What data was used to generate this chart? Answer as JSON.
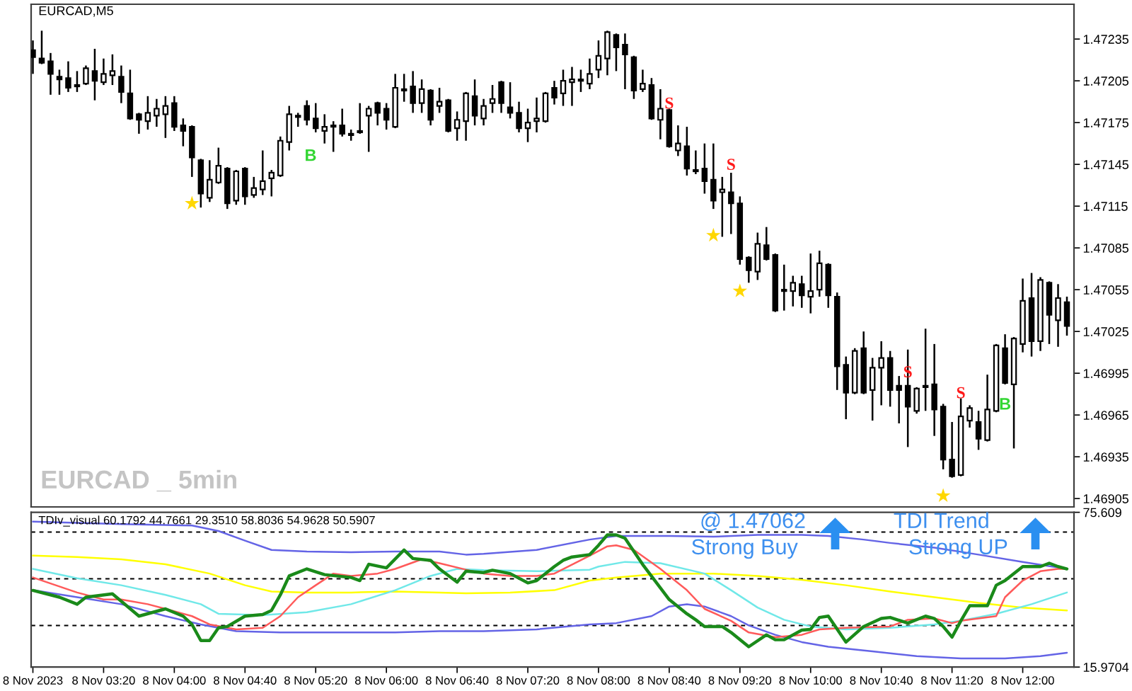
{
  "chart_data": [
    {
      "type": "candlestick",
      "title": "EURCAD,M5",
      "color": "#000000",
      "x": [
        "2023-11-08T02:40",
        "2023-11-08T02:45",
        "2023-11-08T02:50",
        "2023-11-08T02:55",
        "2023-11-08T03:00",
        "2023-11-08T03:05",
        "2023-11-08T03:10",
        "2023-11-08T03:15",
        "2023-11-08T03:20",
        "2023-11-08T03:25",
        "2023-11-08T03:30",
        "2023-11-08T03:35",
        "2023-11-08T03:40",
        "2023-11-08T03:45",
        "2023-11-08T03:50",
        "2023-11-08T03:55",
        "2023-11-08T04:00",
        "2023-11-08T04:05",
        "2023-11-08T04:10",
        "2023-11-08T04:15",
        "2023-11-08T04:20",
        "2023-11-08T04:25",
        "2023-11-08T04:30",
        "2023-11-08T04:35",
        "2023-11-08T04:40",
        "2023-11-08T04:45",
        "2023-11-08T04:50",
        "2023-11-08T04:55",
        "2023-11-08T05:00",
        "2023-11-08T05:05",
        "2023-11-08T05:10",
        "2023-11-08T05:15",
        "2023-11-08T05:20",
        "2023-11-08T05:25",
        "2023-11-08T05:30",
        "2023-11-08T05:35",
        "2023-11-08T05:40",
        "2023-11-08T05:45",
        "2023-11-08T05:50",
        "2023-11-08T05:55",
        "2023-11-08T06:00",
        "2023-11-08T06:05",
        "2023-11-08T06:10",
        "2023-11-08T06:15",
        "2023-11-08T06:20",
        "2023-11-08T06:25",
        "2023-11-08T06:30",
        "2023-11-08T06:35",
        "2023-11-08T06:40",
        "2023-11-08T06:45",
        "2023-11-08T06:50",
        "2023-11-08T06:55",
        "2023-11-08T07:00",
        "2023-11-08T07:05",
        "2023-11-08T07:10",
        "2023-11-08T07:15",
        "2023-11-08T07:20",
        "2023-11-08T07:25",
        "2023-11-08T07:30",
        "2023-11-08T07:35",
        "2023-11-08T07:40",
        "2023-11-08T07:45",
        "2023-11-08T07:50",
        "2023-11-08T07:55",
        "2023-11-08T08:00",
        "2023-11-08T08:05",
        "2023-11-08T08:10",
        "2023-11-08T08:15",
        "2023-11-08T08:20",
        "2023-11-08T08:25",
        "2023-11-08T08:30",
        "2023-11-08T08:35",
        "2023-11-08T08:40",
        "2023-11-08T08:45",
        "2023-11-08T08:50",
        "2023-11-08T08:55",
        "2023-11-08T09:00",
        "2023-11-08T09:05",
        "2023-11-08T09:10",
        "2023-11-08T09:15",
        "2023-11-08T09:20",
        "2023-11-08T09:25",
        "2023-11-08T09:30",
        "2023-11-08T09:35",
        "2023-11-08T09:40",
        "2023-11-08T09:45",
        "2023-11-08T09:50",
        "2023-11-08T09:55",
        "2023-11-08T10:00",
        "2023-11-08T10:05",
        "2023-11-08T10:10",
        "2023-11-08T10:15",
        "2023-11-08T10:20",
        "2023-11-08T10:25",
        "2023-11-08T10:30",
        "2023-11-08T10:35",
        "2023-11-08T10:40",
        "2023-11-08T10:45",
        "2023-11-08T10:50",
        "2023-11-08T10:55",
        "2023-11-08T11:00",
        "2023-11-08T11:05",
        "2023-11-08T11:10",
        "2023-11-08T11:15",
        "2023-11-08T11:20",
        "2023-11-08T11:25",
        "2023-11-08T11:30",
        "2023-11-08T11:35",
        "2023-11-08T11:40",
        "2023-11-08T11:45",
        "2023-11-08T11:50",
        "2023-11-08T11:55",
        "2023-11-08T12:00",
        "2023-11-08T12:05",
        "2023-11-08T12:10",
        "2023-11-08T12:15",
        "2023-11-08T12:20",
        "2023-11-08T12:25"
      ],
      "ohlc": [
        [
          1.47227,
          1.47234,
          1.4721,
          1.47222
        ],
        [
          1.47221,
          1.47241,
          1.47217,
          1.47218
        ],
        [
          1.47219,
          1.47225,
          1.47195,
          1.4721
        ],
        [
          1.47208,
          1.47213,
          1.47195,
          1.47206
        ],
        [
          1.47207,
          1.47219,
          1.47197,
          1.472
        ],
        [
          1.47202,
          1.47212,
          1.47197,
          1.47201
        ],
        [
          1.47203,
          1.47216,
          1.47202,
          1.47214
        ],
        [
          1.47212,
          1.47228,
          1.47191,
          1.47205
        ],
        [
          1.47204,
          1.47221,
          1.47202,
          1.4721
        ],
        [
          1.47209,
          1.47224,
          1.47202,
          1.47212
        ],
        [
          1.47208,
          1.47216,
          1.47189,
          1.47197
        ],
        [
          1.47196,
          1.47213,
          1.47177,
          1.47178
        ],
        [
          1.47181,
          1.47182,
          1.47167,
          1.47177
        ],
        [
          1.47176,
          1.47194,
          1.4717,
          1.47182
        ],
        [
          1.4718,
          1.47192,
          1.47172,
          1.47185
        ],
        [
          1.47181,
          1.47194,
          1.47164,
          1.47187
        ],
        [
          1.47189,
          1.47194,
          1.47169,
          1.47172
        ],
        [
          1.47173,
          1.47178,
          1.47158,
          1.47169
        ],
        [
          1.47172,
          1.47173,
          1.47136,
          1.4715
        ],
        [
          1.47148,
          1.47149,
          1.47114,
          1.47124
        ],
        [
          1.47121,
          1.47148,
          1.47118,
          1.47134
        ],
        [
          1.47132,
          1.47157,
          1.47131,
          1.47144
        ],
        [
          1.47142,
          1.47143,
          1.47113,
          1.47117
        ],
        [
          1.47119,
          1.47141,
          1.47116,
          1.4714
        ],
        [
          1.47142,
          1.47143,
          1.47116,
          1.47122
        ],
        [
          1.47123,
          1.47136,
          1.47121,
          1.47128
        ],
        [
          1.47127,
          1.47155,
          1.47123,
          1.47133
        ],
        [
          1.47135,
          1.47141,
          1.47122,
          1.47139
        ],
        [
          1.47137,
          1.47165,
          1.47136,
          1.47162
        ],
        [
          1.47161,
          1.47187,
          1.47155,
          1.47181
        ],
        [
          1.47179,
          1.47182,
          1.47172,
          1.4718
        ],
        [
          1.47187,
          1.47191,
          1.47173,
          1.47177
        ],
        [
          1.47178,
          1.47189,
          1.47168,
          1.47171
        ],
        [
          1.47169,
          1.47181,
          1.4716,
          1.47172
        ],
        [
          1.47173,
          1.47176,
          1.47154,
          1.47172
        ],
        [
          1.47173,
          1.47185,
          1.47165,
          1.47167
        ],
        [
          1.47166,
          1.4717,
          1.47162,
          1.47167
        ],
        [
          1.47168,
          1.47189,
          1.47167,
          1.47169
        ],
        [
          1.4718,
          1.47187,
          1.47154,
          1.47185
        ],
        [
          1.47189,
          1.4719,
          1.47173,
          1.47182
        ],
        [
          1.47185,
          1.47189,
          1.4717,
          1.47177
        ],
        [
          1.47172,
          1.4721,
          1.47171,
          1.472
        ],
        [
          1.47199,
          1.4721,
          1.4719,
          1.47198
        ],
        [
          1.47201,
          1.47212,
          1.47182,
          1.47189
        ],
        [
          1.47189,
          1.47206,
          1.47182,
          1.47199
        ],
        [
          1.47198,
          1.47199,
          1.47173,
          1.47177
        ],
        [
          1.47187,
          1.472,
          1.47182,
          1.4719
        ],
        [
          1.47191,
          1.47192,
          1.47168,
          1.47169
        ],
        [
          1.47171,
          1.47183,
          1.47162,
          1.47177
        ],
        [
          1.47176,
          1.47197,
          1.47162,
          1.47196
        ],
        [
          1.47194,
          1.47206,
          1.47173,
          1.4718
        ],
        [
          1.47178,
          1.47192,
          1.47173,
          1.47187
        ],
        [
          1.47189,
          1.47202,
          1.47182,
          1.47192
        ],
        [
          1.47204,
          1.47205,
          1.47182,
          1.47189
        ],
        [
          1.47186,
          1.47204,
          1.47178,
          1.47182
        ],
        [
          1.47182,
          1.4719,
          1.47168,
          1.47171
        ],
        [
          1.47171,
          1.47185,
          1.47161,
          1.47175
        ],
        [
          1.47176,
          1.47193,
          1.47168,
          1.47178
        ],
        [
          1.47176,
          1.47197,
          1.47175,
          1.47196
        ],
        [
          1.472,
          1.47205,
          1.47188,
          1.47193
        ],
        [
          1.47196,
          1.47213,
          1.47187,
          1.47205
        ],
        [
          1.47204,
          1.47215,
          1.47187,
          1.47206
        ],
        [
          1.47205,
          1.47213,
          1.47197,
          1.47206
        ],
        [
          1.47203,
          1.47221,
          1.47199,
          1.4721
        ],
        [
          1.47213,
          1.47234,
          1.47207,
          1.47223
        ],
        [
          1.47221,
          1.47241,
          1.47209,
          1.4724
        ],
        [
          1.47238,
          1.47239,
          1.47212,
          1.47229
        ],
        [
          1.47231,
          1.47239,
          1.47199,
          1.47224
        ],
        [
          1.47222,
          1.47223,
          1.47192,
          1.47198
        ],
        [
          1.47199,
          1.47213,
          1.47197,
          1.47203
        ],
        [
          1.47202,
          1.47207,
          1.47177,
          1.47178
        ],
        [
          1.47177,
          1.47199,
          1.47163,
          1.47185
        ],
        [
          1.47184,
          1.47185,
          1.47157,
          1.47158
        ],
        [
          1.47155,
          1.47173,
          1.47151,
          1.4716
        ],
        [
          1.47158,
          1.47172,
          1.47137,
          1.47142
        ],
        [
          1.47141,
          1.47155,
          1.47138,
          1.4714
        ],
        [
          1.47142,
          1.4716,
          1.47124,
          1.47133
        ],
        [
          1.47134,
          1.4716,
          1.47113,
          1.47119
        ],
        [
          1.47125,
          1.47136,
          1.47093,
          1.47127
        ],
        [
          1.47125,
          1.47139,
          1.47095,
          1.47117
        ],
        [
          1.47117,
          1.47122,
          1.47073,
          1.47077
        ],
        [
          1.47078,
          1.47079,
          1.4706,
          1.47069
        ],
        [
          1.47068,
          1.47096,
          1.47062,
          1.47088
        ],
        [
          1.47087,
          1.471,
          1.47076,
          1.47077
        ],
        [
          1.4708,
          1.47081,
          1.47039,
          1.4704
        ],
        [
          1.47055,
          1.47073,
          1.4704,
          1.47054
        ],
        [
          1.47054,
          1.47065,
          1.47043,
          1.4706
        ],
        [
          1.47059,
          1.47065,
          1.47042,
          1.47051
        ],
        [
          1.4705,
          1.47081,
          1.47038,
          1.47054
        ],
        [
          1.47055,
          1.47083,
          1.4705,
          1.47074
        ],
        [
          1.47073,
          1.47074,
          1.47042,
          1.47051
        ],
        [
          1.4705,
          1.47053,
          1.46983,
          1.47
        ],
        [
          1.47001,
          1.47007,
          1.46962,
          1.46981
        ],
        [
          1.46981,
          1.47013,
          1.4698,
          1.47011
        ],
        [
          1.47013,
          1.47025,
          1.4698,
          1.46981
        ],
        [
          1.46983,
          1.47006,
          1.46961,
          1.46999
        ],
        [
          1.46999,
          1.47018,
          1.46972,
          1.47006
        ],
        [
          1.47006,
          1.47011,
          1.46971,
          1.46983
        ],
        [
          1.46986,
          1.46993,
          1.46959,
          1.46983
        ],
        [
          1.46986,
          1.47012,
          1.46942,
          1.46971
        ],
        [
          1.46968,
          1.46985,
          1.46966,
          1.46984
        ],
        [
          1.46985,
          1.47027,
          1.46968,
          1.46986
        ],
        [
          1.46987,
          1.47016,
          1.4695,
          1.46969
        ],
        [
          1.46971,
          1.46973,
          1.46926,
          1.46933
        ],
        [
          1.46933,
          1.4696,
          1.4692,
          1.46921
        ],
        [
          1.46922,
          1.46977,
          1.46921,
          1.46964
        ],
        [
          1.46961,
          1.46972,
          1.46956,
          1.4697
        ],
        [
          1.4696,
          1.46968,
          1.4694,
          1.46948
        ],
        [
          1.46947,
          1.46994,
          1.46946,
          1.46969
        ],
        [
          1.46968,
          1.47016,
          1.46967,
          1.47015
        ],
        [
          1.47013,
          1.47023,
          1.46987,
          1.46988
        ],
        [
          1.46987,
          1.47021,
          1.46941,
          1.4702
        ],
        [
          1.47016,
          1.47063,
          1.4701,
          1.47047
        ],
        [
          1.47049,
          1.47067,
          1.47007,
          1.47018
        ],
        [
          1.47018,
          1.47064,
          1.47011,
          1.47062
        ],
        [
          1.4706,
          1.47061,
          1.47016,
          1.47037
        ],
        [
          1.47033,
          1.47059,
          1.47014,
          1.47049
        ],
        [
          1.47046,
          1.4705,
          1.47022,
          1.47029
        ]
      ],
      "series": [
        {
          "type": "scatter",
          "marker": "star",
          "color": "#ffd700",
          "x": [
            "2023-11-08T04:10",
            "2023-11-08T09:05",
            "2023-11-08T09:20",
            "2023-11-08T11:15"
          ],
          "values": [
            1.47117,
            1.47094,
            1.47054,
            1.46907
          ]
        }
      ],
      "xlim": [
        "2023-11-08T02:39",
        "2023-11-08T12:29"
      ],
      "ylim": [
        1.46899,
        1.4726
      ],
      "yticks": [
        1.46905,
        1.46935,
        1.46965,
        1.46995,
        1.47025,
        1.47055,
        1.47085,
        1.47115,
        1.47145,
        1.47175,
        1.47205,
        1.47235
      ],
      "tick_labels": "y",
      "annotations": [
        "EURCAD _ 5min",
        {
          "text": "S",
          "x": "2023-11-08T08:40",
          "y": 1.47188
        },
        {
          "text": "S",
          "x": "2023-11-08T09:15",
          "y": 1.47144
        },
        {
          "text": "S",
          "x": "2023-11-08T10:55",
          "y": 1.46995
        },
        {
          "text": "S",
          "x": "2023-11-08T11:25",
          "y": 1.4698
        },
        "B",
        {
          "text": "B",
          "x": "2023-11-08T11:50",
          "y": 1.46972
        }
      ]
    },
    {
      "type": "line",
      "title": "TDIv_visual 60.1792 44.7661 29.3510 58.8036 54.9628 50.5907",
      "series": [
        {
          "color": "#6464e6",
          "x": [
            "2023-11-08T02:40",
            "2023-11-08T03:30",
            "2023-11-08T04:10",
            "2023-11-08T04:25",
            "2023-11-08T04:40",
            "2023-11-08T04:55",
            "2023-11-08T05:15",
            "2023-11-08T05:40",
            "2023-11-08T06:05",
            "2023-11-08T06:30",
            "2023-11-08T06:45",
            "2023-11-08T06:55",
            "2023-11-08T07:25",
            "2023-11-08T07:55",
            "2023-11-08T08:10",
            "2023-11-08T08:40",
            "2023-11-08T09:05",
            "2023-11-08T09:30",
            "2023-11-08T09:55",
            "2023-11-08T10:10",
            "2023-11-08T10:30",
            "2023-11-08T10:45",
            "2023-11-08T11:10",
            "2023-11-08T11:35",
            "2023-11-08T12:00",
            "2023-11-08T12:25"
          ],
          "values": [
            72.0,
            71.1,
            70.5,
            68.4,
            64.7,
            61.1,
            60.5,
            60.2,
            60.5,
            60.5,
            59.3,
            59.6,
            61.1,
            65.1,
            66.5,
            66.5,
            66.2,
            66.9,
            66.9,
            66.5,
            65.1,
            63.8,
            62.0,
            59.3,
            56.5,
            53.8
          ]
        },
        {
          "color": "#6464e6",
          "x": [
            "2023-11-08T02:40",
            "2023-11-08T03:05",
            "2023-11-08T03:30",
            "2023-11-08T03:55",
            "2023-11-08T04:15",
            "2023-11-08T04:35",
            "2023-11-08T05:00",
            "2023-11-08T05:40",
            "2023-11-08T06:05",
            "2023-11-08T06:30",
            "2023-11-08T06:55",
            "2023-11-08T07:25",
            "2023-11-08T07:55",
            "2023-11-08T08:10",
            "2023-11-08T08:30",
            "2023-11-08T08:40",
            "2023-11-08T08:50",
            "2023-11-08T09:00",
            "2023-11-08T09:15",
            "2023-11-08T09:25",
            "2023-11-08T09:40",
            "2023-11-08T09:55",
            "2023-11-08T10:10",
            "2023-11-08T10:35",
            "2023-11-08T11:00",
            "2023-11-08T11:25",
            "2023-11-08T11:50",
            "2023-11-08T12:10",
            "2023-11-08T12:25"
          ],
          "values": [
            45.6,
            42.9,
            40.2,
            35.6,
            32.4,
            29.8,
            29.3,
            29.3,
            29.3,
            29.8,
            29.8,
            30.5,
            32.4,
            32.9,
            35.6,
            39.3,
            40.2,
            39.3,
            35.6,
            32.0,
            28.4,
            25.6,
            23.8,
            22.0,
            20.2,
            19.3,
            19.3,
            20.2,
            21.5
          ]
        },
        {
          "color": "#ffff00",
          "x": [
            "2023-11-08T02:40",
            "2023-11-08T03:05",
            "2023-11-08T03:30",
            "2023-11-08T03:55",
            "2023-11-08T04:20",
            "2023-11-08T04:40",
            "2023-11-08T04:55",
            "2023-11-08T05:15",
            "2023-11-08T05:40",
            "2023-11-08T06:05",
            "2023-11-08T06:30",
            "2023-11-08T06:45",
            "2023-11-08T07:10",
            "2023-11-08T07:35",
            "2023-11-08T07:55",
            "2023-11-08T08:10",
            "2023-11-08T08:35",
            "2023-11-08T09:05",
            "2023-11-08T09:30",
            "2023-11-08T09:55",
            "2023-11-08T10:20",
            "2023-11-08T10:45",
            "2023-11-08T11:10",
            "2023-11-08T11:35",
            "2023-11-08T12:00",
            "2023-11-08T12:25"
          ],
          "values": [
            58.9,
            58.4,
            57.5,
            55.6,
            52.0,
            47.5,
            45.1,
            44.7,
            44.7,
            45.1,
            44.7,
            44.4,
            44.7,
            45.6,
            49.3,
            50.5,
            52.0,
            52.0,
            51.1,
            49.6,
            47.5,
            45.1,
            42.9,
            40.7,
            38.9,
            37.8
          ]
        },
        {
          "color": "#70e8e8",
          "x": [
            "2023-11-08T02:40",
            "2023-11-08T03:05",
            "2023-11-08T03:30",
            "2023-11-08T03:55",
            "2023-11-08T04:15",
            "2023-11-08T04:25",
            "2023-11-08T04:50",
            "2023-11-08T05:15",
            "2023-11-08T05:40",
            "2023-11-08T06:05",
            "2023-11-08T06:25",
            "2023-11-08T06:40",
            "2023-11-08T06:55",
            "2023-11-08T07:25",
            "2023-11-08T07:55",
            "2023-11-08T08:00",
            "2023-11-08T08:15",
            "2023-11-08T08:35",
            "2023-11-08T09:00",
            "2023-11-08T09:15",
            "2023-11-08T09:30",
            "2023-11-08T09:45",
            "2023-11-08T10:00",
            "2023-11-08T10:20",
            "2023-11-08T10:45",
            "2023-11-08T11:10",
            "2023-11-08T11:25",
            "2023-11-08T11:45",
            "2023-11-08T12:05",
            "2023-11-08T12:25"
          ],
          "values": [
            53.8,
            50.2,
            47.5,
            43.8,
            40.2,
            36.5,
            36.0,
            37.1,
            40.2,
            45.6,
            51.1,
            53.8,
            53.3,
            52.9,
            53.5,
            54.7,
            56.5,
            56.0,
            52.0,
            45.6,
            38.9,
            34.2,
            31.6,
            30.5,
            31.1,
            32.4,
            33.8,
            36.5,
            40.2,
            44.7
          ]
        },
        {
          "color": "#ff5a5a",
          "x": [
            "2023-11-08T02:40",
            "2023-11-08T03:05",
            "2023-11-08T03:20",
            "2023-11-08T03:30",
            "2023-11-08T03:45",
            "2023-11-08T03:55",
            "2023-11-08T04:10",
            "2023-11-08T04:20",
            "2023-11-08T04:35",
            "2023-11-08T04:50",
            "2023-11-08T05:00",
            "2023-11-08T05:10",
            "2023-11-08T05:20",
            "2023-11-08T05:30",
            "2023-11-08T05:40",
            "2023-11-08T05:55",
            "2023-11-08T06:05",
            "2023-11-08T06:20",
            "2023-11-08T06:30",
            "2023-11-08T06:45",
            "2023-11-08T06:55",
            "2023-11-08T07:10",
            "2023-11-08T07:25",
            "2023-11-08T07:35",
            "2023-11-08T07:55",
            "2023-11-08T08:05",
            "2023-11-08T08:10",
            "2023-11-08T08:20",
            "2023-11-08T08:35",
            "2023-11-08T08:50",
            "2023-11-08T09:00",
            "2023-11-08T09:15",
            "2023-11-08T09:25",
            "2023-11-08T09:40",
            "2023-11-08T09:55",
            "2023-11-08T10:05",
            "2023-11-08T10:20",
            "2023-11-08T10:45",
            "2023-11-08T10:55",
            "2023-11-08T11:10",
            "2023-11-08T11:20",
            "2023-11-08T11:25",
            "2023-11-08T11:35",
            "2023-11-08T11:45",
            "2023-11-08T11:50",
            "2023-11-08T12:00",
            "2023-11-08T12:10",
            "2023-11-08T12:20",
            "2023-11-08T12:25"
          ],
          "values": [
            50.5,
            44.7,
            42.0,
            42.0,
            40.2,
            38.4,
            35.6,
            32.4,
            30.5,
            31.1,
            35.6,
            42.9,
            47.5,
            52.0,
            51.1,
            52.0,
            53.8,
            57.5,
            56.0,
            53.5,
            52.0,
            51.1,
            51.1,
            52.0,
            58.9,
            62.5,
            62.9,
            61.1,
            53.8,
            45.6,
            38.4,
            33.8,
            29.3,
            27.5,
            28.4,
            30.5,
            31.1,
            31.6,
            34.2,
            34.7,
            32.9,
            33.8,
            34.7,
            35.6,
            42.9,
            49.3,
            52.9,
            53.8,
            53.8
          ]
        },
        {
          "color": "#1a8a1a",
          "x": [
            "2023-11-08T02:40",
            "2023-11-08T02:55",
            "2023-11-08T03:05",
            "2023-11-08T03:10",
            "2023-11-08T03:25",
            "2023-11-08T03:40",
            "2023-11-08T03:55",
            "2023-11-08T04:05",
            "2023-11-08T04:10",
            "2023-11-08T04:15",
            "2023-11-08T04:20",
            "2023-11-08T04:25",
            "2023-11-08T04:30",
            "2023-11-08T04:40",
            "2023-11-08T04:50",
            "2023-11-08T04:55",
            "2023-11-08T05:00",
            "2023-11-08T05:05",
            "2023-11-08T05:15",
            "2023-11-08T05:25",
            "2023-11-08T05:40",
            "2023-11-08T05:45",
            "2023-11-08T05:50",
            "2023-11-08T06:00",
            "2023-11-08T06:10",
            "2023-11-08T06:15",
            "2023-11-08T06:25",
            "2023-11-08T06:30",
            "2023-11-08T06:40",
            "2023-11-08T06:45",
            "2023-11-08T06:55",
            "2023-11-08T07:00",
            "2023-11-08T07:10",
            "2023-11-08T07:20",
            "2023-11-08T07:25",
            "2023-11-08T07:35",
            "2023-11-08T07:40",
            "2023-11-08T07:45",
            "2023-11-08T07:55",
            "2023-11-08T08:00",
            "2023-11-08T08:05",
            "2023-11-08T08:10",
            "2023-11-08T08:15",
            "2023-11-08T08:25",
            "2023-11-08T08:40",
            "2023-11-08T08:50",
            "2023-11-08T08:55",
            "2023-11-08T09:00",
            "2023-11-08T09:10",
            "2023-11-08T09:15",
            "2023-11-08T09:25",
            "2023-11-08T09:35",
            "2023-11-08T09:40",
            "2023-11-08T09:45",
            "2023-11-08T09:55",
            "2023-11-08T10:00",
            "2023-11-08T10:05",
            "2023-11-08T10:10",
            "2023-11-08T10:20",
            "2023-11-08T10:30",
            "2023-11-08T10:40",
            "2023-11-08T10:45",
            "2023-11-08T10:55",
            "2023-11-08T11:05",
            "2023-11-08T11:10",
            "2023-11-08T11:15",
            "2023-11-08T11:20",
            "2023-11-08T11:25",
            "2023-11-08T11:30",
            "2023-11-08T11:40",
            "2023-11-08T11:45",
            "2023-11-08T11:50",
            "2023-11-08T12:00",
            "2023-11-08T12:10",
            "2023-11-08T12:15",
            "2023-11-08T12:20",
            "2023-11-08T12:25"
          ],
          "values": [
            45.5,
            42.9,
            40.2,
            42.9,
            44.2,
            35.6,
            38.4,
            35.6,
            32.4,
            26.2,
            26.2,
            31.1,
            31.6,
            35.6,
            36.2,
            37.8,
            43.8,
            51.1,
            53.8,
            51.6,
            50.5,
            49.3,
            55.6,
            54.2,
            61.1,
            57.8,
            57.1,
            53.8,
            48.7,
            52.9,
            52.4,
            53.3,
            52.0,
            48.4,
            49.3,
            54.7,
            57.1,
            58.4,
            59.3,
            62.9,
            66.9,
            66.9,
            65.6,
            55.5,
            42.0,
            36.5,
            34.2,
            31.6,
            31.6,
            29.3,
            23.8,
            28.4,
            26.5,
            26.5,
            30.2,
            30.5,
            35.1,
            35.6,
            25.6,
            31.6,
            34.7,
            35.1,
            32.9,
            35.6,
            34.7,
            31.6,
            27.5,
            33.8,
            39.6,
            39.6,
            47.5,
            49.3,
            54.7,
            54.7,
            56.0,
            54.7,
            53.8
          ]
        }
      ],
      "ref_lines": [
        {
          "axis": "y",
          "value": 68,
          "color": "#000000",
          "line_style": "dashed"
        },
        {
          "axis": "y",
          "value": 50,
          "color": "#000000",
          "line_style": "dashed"
        },
        {
          "axis": "y",
          "value": 32,
          "color": "#000000",
          "line_style": "dashed"
        }
      ],
      "xlim": [
        "2023-11-08T02:39",
        "2023-11-08T12:29"
      ],
      "ylim": [
        15.9704,
        75.609
      ],
      "yticks": [
        15.9704,
        75.609
      ],
      "xticks": [
        {
          "value": "2023-11-08T02:40",
          "label": "8 Nov 2023"
        },
        {
          "value": "2023-11-08T03:20",
          "label": "8 Nov 03:20"
        },
        {
          "value": "2023-11-08T04:00",
          "label": "8 Nov 04:00"
        },
        {
          "value": "2023-11-08T04:40",
          "label": "8 Nov 04:40"
        },
        {
          "value": "2023-11-08T05:20",
          "label": "8 Nov 05:20"
        },
        {
          "value": "2023-11-08T06:00",
          "label": "8 Nov 06:00"
        },
        {
          "value": "2023-11-08T06:40",
          "label": "8 Nov 06:40"
        },
        {
          "value": "2023-11-08T07:20",
          "label": "8 Nov 07:20"
        },
        {
          "value": "2023-11-08T08:00",
          "label": "8 Nov 08:00"
        },
        {
          "value": "2023-11-08T08:40",
          "label": "8 Nov 08:40"
        },
        {
          "value": "2023-11-08T09:20",
          "label": "8 Nov 09:20"
        },
        {
          "value": "2023-11-08T10:00",
          "label": "8 Nov 10:00"
        },
        {
          "value": "2023-11-08T10:40",
          "label": "8 Nov 10:40"
        },
        {
          "value": "2023-11-08T11:20",
          "label": "8 Nov 11:20"
        },
        {
          "value": "2023-11-08T12:00",
          "label": "8 Nov 12:00"
        }
      ],
      "annotations": [
        "@ 1.47062",
        "Strong Buy",
        "TDI Trend",
        "Strong UP"
      ]
    }
  ]
}
